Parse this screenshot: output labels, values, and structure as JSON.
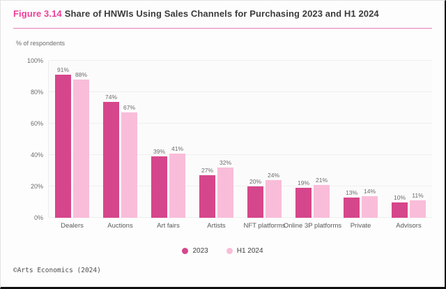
{
  "header": {
    "figure_label": "Figure 3.14",
    "title": "Share of HNWIs Using Sales Channels for Purchasing 2023 and H1 2024"
  },
  "axis_caption": "% of respondents",
  "chart_data": {
    "type": "bar",
    "title": "Share of HNWIs Using Sales Channels for Purchasing 2023 and H1 2024",
    "categories": [
      "Dealers",
      "Auctions",
      "Art fairs",
      "Artists",
      "NFT platforms",
      "Online 3P platforms",
      "Private",
      "Advisors"
    ],
    "series": [
      {
        "name": "2023",
        "color": "#d6468c",
        "values": [
          91,
          74,
          39,
          27,
          20,
          19,
          13,
          10
        ]
      },
      {
        "name": "H1 2024",
        "color": "#f9bdd9",
        "values": [
          88,
          67,
          41,
          32,
          24,
          21,
          14,
          11
        ]
      }
    ],
    "xlabel": "",
    "ylabel": "% of respondents",
    "ylim": [
      0,
      100
    ],
    "yticks": [
      0,
      20,
      40,
      60,
      80,
      100
    ],
    "grid": true,
    "legend_position": "bottom",
    "value_labels": true
  },
  "footer": {
    "credit": "©Arts Economics (2024)"
  },
  "colors": {
    "accent_pink": "#ee3f98",
    "divider_pink": "#e87db4",
    "series_2023": "#d6468c",
    "series_h1_2024": "#f9bdd9",
    "grid": "#efefef",
    "text_dark": "#3b3b3b",
    "text_gray": "#6b6b6b",
    "frame_dark": "#161616"
  }
}
